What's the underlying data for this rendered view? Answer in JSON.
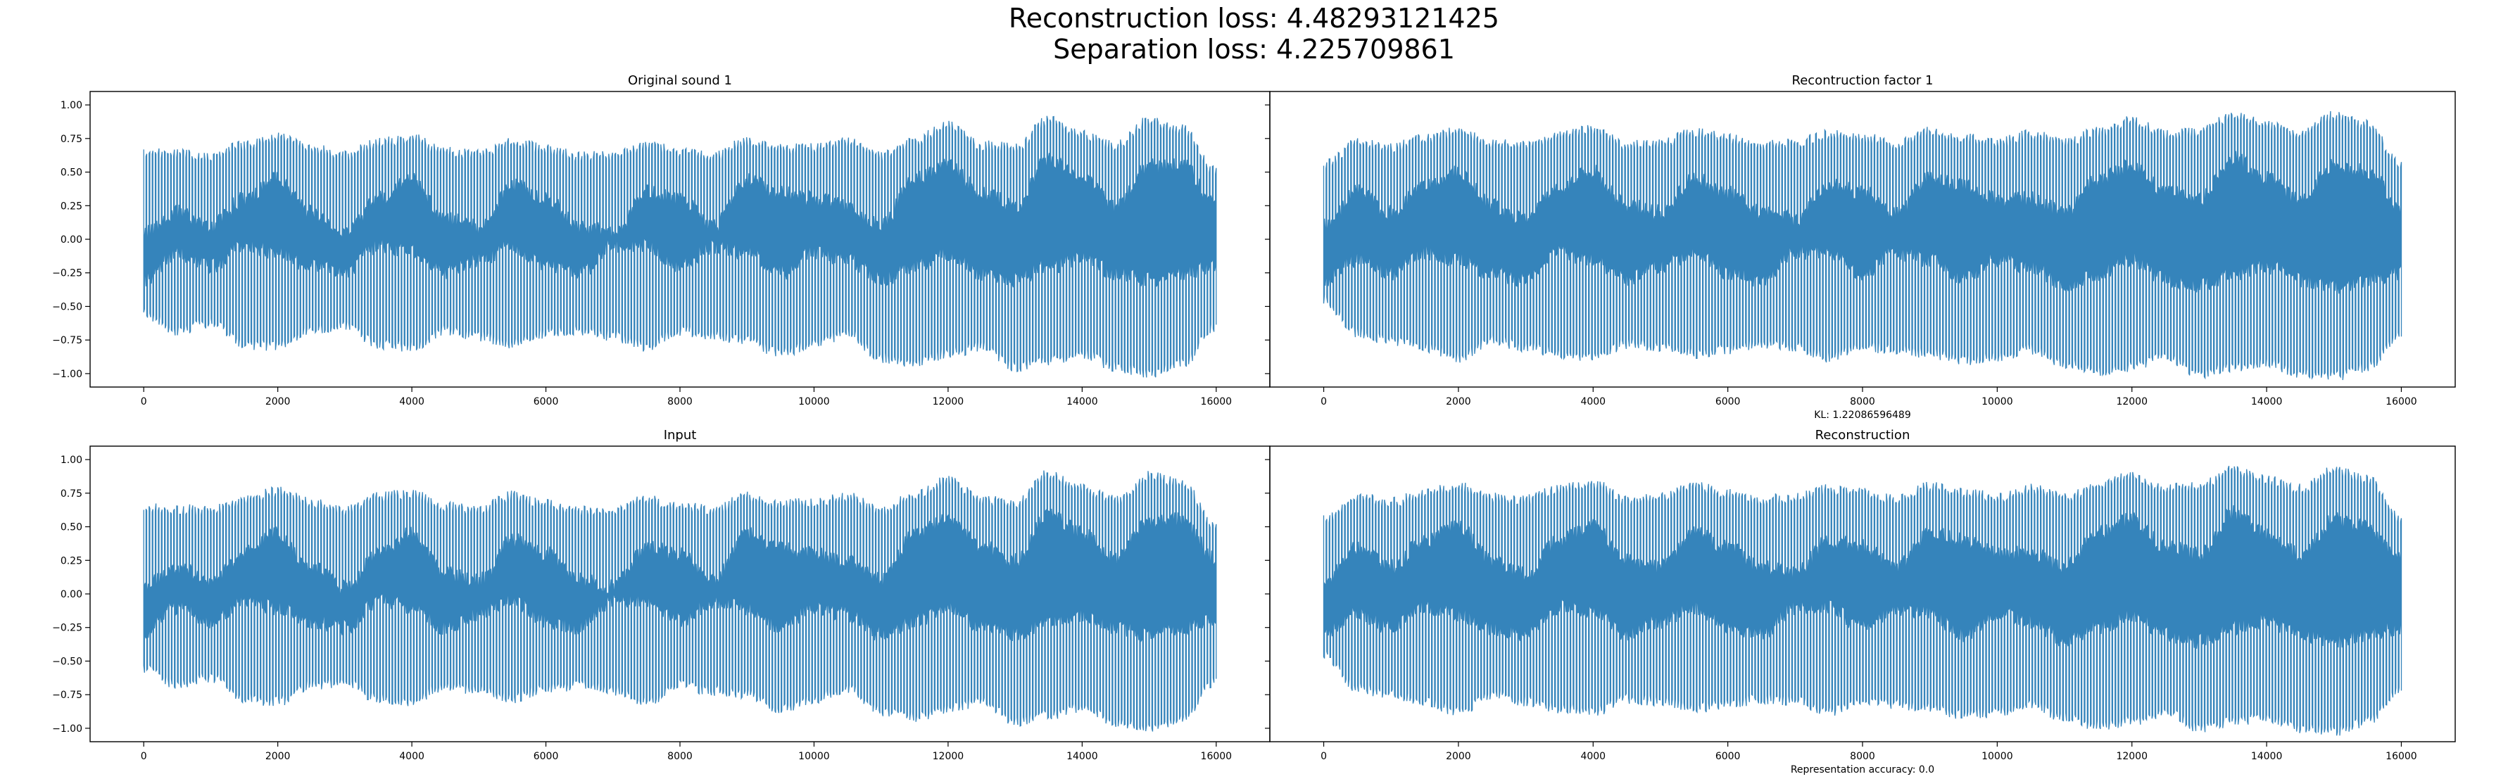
{
  "figure": {
    "suptitle_line1": "Reconstruction loss: 4.48293121425",
    "suptitle_line2": "Separation loss: 4.225709861",
    "line_color": "#1f77b4",
    "background": "#ffffff"
  },
  "chart_data": [
    {
      "type": "line",
      "title": "Original sound 1",
      "xlabel": "",
      "ylabel": "",
      "xlim": [
        -800,
        16800
      ],
      "ylim": [
        -1.1,
        1.1
      ],
      "xticks": [
        0,
        2000,
        4000,
        6000,
        8000,
        10000,
        12000,
        14000,
        16000
      ],
      "yticks": [
        -1.0,
        -0.75,
        -0.5,
        -0.25,
        0.0,
        0.25,
        0.5,
        0.75,
        1.0
      ],
      "ytick_labels": [
        "−1.00",
        "−0.75",
        "−0.50",
        "−0.25",
        "0.00",
        "0.25",
        "0.50",
        "0.75",
        "1.00"
      ],
      "grid": false,
      "series": [
        {
          "values": "waveform, 16000 samples",
          "x_range": [
            0,
            16000
          ],
          "y_range": [
            -1.0,
            0.89
          ]
        }
      ],
      "envelope_knots": {
        "x": [
          0,
          500,
          1000,
          1500,
          2000,
          2500,
          3000,
          3500,
          4000,
          4500,
          5000,
          5500,
          6000,
          6500,
          7000,
          7500,
          8000,
          8500,
          9000,
          9500,
          10000,
          10500,
          11000,
          11500,
          12000,
          12500,
          13000,
          13500,
          14000,
          14500,
          15000,
          15500,
          16000
        ],
        "upper": [
          0.65,
          0.63,
          0.62,
          0.7,
          0.76,
          0.68,
          0.62,
          0.72,
          0.75,
          0.65,
          0.63,
          0.73,
          0.67,
          0.62,
          0.62,
          0.7,
          0.65,
          0.62,
          0.73,
          0.67,
          0.68,
          0.72,
          0.62,
          0.73,
          0.85,
          0.7,
          0.68,
          0.89,
          0.78,
          0.7,
          0.88,
          0.82,
          0.5
        ],
        "lower": [
          -0.55,
          -0.68,
          -0.62,
          -0.78,
          -0.8,
          -0.68,
          -0.65,
          -0.78,
          -0.8,
          -0.68,
          -0.72,
          -0.78,
          -0.7,
          -0.68,
          -0.72,
          -0.8,
          -0.68,
          -0.72,
          -0.75,
          -0.85,
          -0.78,
          -0.7,
          -0.88,
          -0.92,
          -0.85,
          -0.8,
          -0.95,
          -0.9,
          -0.85,
          -0.95,
          -1.0,
          -0.92,
          -0.65
        ],
        "mid_upper": [
          0.05,
          0.2,
          0.1,
          0.3,
          0.45,
          0.2,
          0.05,
          0.3,
          0.45,
          0.15,
          0.1,
          0.4,
          0.3,
          0.1,
          0.05,
          0.35,
          0.3,
          0.1,
          0.45,
          0.35,
          0.3,
          0.25,
          0.1,
          0.45,
          0.55,
          0.35,
          0.25,
          0.6,
          0.45,
          0.25,
          0.55,
          0.55,
          0.25
        ],
        "mid_lower": [
          -0.3,
          -0.1,
          -0.2,
          -0.05,
          -0.1,
          -0.2,
          -0.25,
          -0.05,
          -0.1,
          -0.25,
          -0.15,
          -0.05,
          -0.2,
          -0.25,
          -0.05,
          -0.05,
          -0.2,
          -0.05,
          -0.1,
          -0.25,
          -0.1,
          -0.15,
          -0.3,
          -0.2,
          -0.1,
          -0.25,
          -0.3,
          -0.2,
          -0.15,
          -0.25,
          -0.3,
          -0.25,
          -0.2
        ]
      }
    },
    {
      "type": "line",
      "title": "Recontruction factor 1",
      "xlabel": "KL: 1.22086596489",
      "ylabel": "",
      "xlim": [
        -800,
        16800
      ],
      "ylim": [
        -1.1,
        1.1
      ],
      "xticks": [
        0,
        2000,
        4000,
        6000,
        8000,
        10000,
        12000,
        14000,
        16000
      ],
      "yticks": [
        -1.0,
        -0.75,
        -0.5,
        -0.25,
        0.0,
        0.25,
        0.5,
        0.75,
        1.0
      ],
      "grid": false,
      "series": [
        {
          "values": "waveform, 16000 samples",
          "x_range": [
            0,
            16000
          ],
          "y_range": [
            -1.02,
            0.93
          ]
        }
      ],
      "envelope_knots": {
        "x": [
          0,
          500,
          1000,
          1500,
          2000,
          2500,
          3000,
          3500,
          4000,
          4500,
          5000,
          5500,
          6000,
          6500,
          7000,
          7500,
          8000,
          8500,
          9000,
          9500,
          10000,
          10500,
          11000,
          11500,
          12000,
          12500,
          13000,
          13500,
          14000,
          14500,
          15000,
          15500,
          16000
        ],
        "upper": [
          0.55,
          0.72,
          0.68,
          0.75,
          0.8,
          0.72,
          0.7,
          0.78,
          0.82,
          0.7,
          0.72,
          0.8,
          0.75,
          0.7,
          0.72,
          0.78,
          0.76,
          0.7,
          0.8,
          0.75,
          0.72,
          0.78,
          0.72,
          0.8,
          0.88,
          0.78,
          0.8,
          0.92,
          0.85,
          0.78,
          0.92,
          0.85,
          0.55
        ],
        "lower": [
          -0.45,
          -0.7,
          -0.75,
          -0.8,
          -0.88,
          -0.75,
          -0.8,
          -0.85,
          -0.88,
          -0.78,
          -0.8,
          -0.85,
          -0.82,
          -0.78,
          -0.8,
          -0.88,
          -0.8,
          -0.82,
          -0.85,
          -0.9,
          -0.88,
          -0.82,
          -0.92,
          -0.98,
          -0.95,
          -0.88,
          -1.0,
          -0.95,
          -0.92,
          -1.0,
          -1.02,
          -0.95,
          -0.7
        ],
        "mid_upper": [
          0.1,
          0.35,
          0.2,
          0.4,
          0.5,
          0.25,
          0.15,
          0.4,
          0.5,
          0.25,
          0.2,
          0.45,
          0.35,
          0.2,
          0.15,
          0.4,
          0.35,
          0.2,
          0.45,
          0.4,
          0.3,
          0.3,
          0.2,
          0.45,
          0.55,
          0.35,
          0.3,
          0.6,
          0.45,
          0.3,
          0.55,
          0.5,
          0.25
        ],
        "mid_lower": [
          -0.3,
          -0.15,
          -0.25,
          -0.1,
          -0.15,
          -0.25,
          -0.3,
          -0.1,
          -0.15,
          -0.3,
          -0.2,
          -0.1,
          -0.25,
          -0.3,
          -0.1,
          -0.1,
          -0.25,
          -0.1,
          -0.15,
          -0.3,
          -0.15,
          -0.2,
          -0.35,
          -0.25,
          -0.15,
          -0.3,
          -0.35,
          -0.25,
          -0.2,
          -0.3,
          -0.35,
          -0.3,
          -0.25
        ]
      }
    },
    {
      "type": "line",
      "title": "Input",
      "xlabel": "",
      "ylabel": "",
      "xlim": [
        -800,
        16800
      ],
      "ylim": [
        -1.1,
        1.1
      ],
      "xticks": [
        0,
        2000,
        4000,
        6000,
        8000,
        10000,
        12000,
        14000,
        16000
      ],
      "yticks": [
        -1.0,
        -0.75,
        -0.5,
        -0.25,
        0.0,
        0.25,
        0.5,
        0.75,
        1.0
      ],
      "ytick_labels": [
        "−1.00",
        "−0.75",
        "−0.50",
        "−0.25",
        "0.00",
        "0.25",
        "0.50",
        "0.75",
        "1.00"
      ],
      "grid": false,
      "series": [
        {
          "values": "waveform, 16000 samples",
          "x_range": [
            0,
            16000
          ],
          "y_range": [
            -1.0,
            0.89
          ]
        }
      ],
      "envelope_knots": {
        "x": [
          0,
          500,
          1000,
          1500,
          2000,
          2500,
          3000,
          3500,
          4000,
          4500,
          5000,
          5500,
          6000,
          6500,
          7000,
          7500,
          8000,
          8500,
          9000,
          9500,
          10000,
          10500,
          11000,
          11500,
          12000,
          12500,
          13000,
          13500,
          14000,
          14500,
          15000,
          15500,
          16000
        ],
        "upper": [
          0.65,
          0.63,
          0.62,
          0.7,
          0.76,
          0.68,
          0.62,
          0.72,
          0.75,
          0.65,
          0.63,
          0.73,
          0.67,
          0.62,
          0.62,
          0.7,
          0.65,
          0.62,
          0.73,
          0.67,
          0.68,
          0.72,
          0.62,
          0.73,
          0.85,
          0.7,
          0.68,
          0.89,
          0.78,
          0.7,
          0.88,
          0.82,
          0.5
        ],
        "lower": [
          -0.55,
          -0.68,
          -0.62,
          -0.78,
          -0.8,
          -0.68,
          -0.65,
          -0.78,
          -0.8,
          -0.68,
          -0.72,
          -0.78,
          -0.7,
          -0.68,
          -0.72,
          -0.8,
          -0.68,
          -0.72,
          -0.75,
          -0.85,
          -0.78,
          -0.7,
          -0.88,
          -0.92,
          -0.85,
          -0.8,
          -0.95,
          -0.9,
          -0.85,
          -0.95,
          -1.0,
          -0.92,
          -0.65
        ],
        "mid_upper": [
          0.05,
          0.2,
          0.1,
          0.3,
          0.45,
          0.2,
          0.05,
          0.3,
          0.45,
          0.15,
          0.1,
          0.4,
          0.3,
          0.1,
          0.05,
          0.35,
          0.3,
          0.1,
          0.45,
          0.35,
          0.3,
          0.25,
          0.1,
          0.45,
          0.55,
          0.35,
          0.25,
          0.6,
          0.45,
          0.25,
          0.55,
          0.55,
          0.25
        ],
        "mid_lower": [
          -0.3,
          -0.1,
          -0.2,
          -0.05,
          -0.1,
          -0.2,
          -0.25,
          -0.05,
          -0.1,
          -0.25,
          -0.15,
          -0.05,
          -0.2,
          -0.25,
          -0.05,
          -0.05,
          -0.2,
          -0.05,
          -0.1,
          -0.25,
          -0.1,
          -0.15,
          -0.3,
          -0.2,
          -0.1,
          -0.25,
          -0.3,
          -0.2,
          -0.15,
          -0.25,
          -0.3,
          -0.25,
          -0.2
        ]
      }
    },
    {
      "type": "line",
      "title": "Reconstruction",
      "xlabel": "Representation accuracy: 0.0",
      "ylabel": "",
      "xlim": [
        -800,
        16800
      ],
      "ylim": [
        -1.1,
        1.1
      ],
      "xticks": [
        0,
        2000,
        4000,
        6000,
        8000,
        10000,
        12000,
        14000,
        16000
      ],
      "yticks": [
        -1.0,
        -0.75,
        -0.5,
        -0.25,
        0.0,
        0.25,
        0.5,
        0.75,
        1.0
      ],
      "grid": false,
      "series": [
        {
          "values": "waveform, 16000 samples",
          "x_range": [
            0,
            16000
          ],
          "y_range": [
            -1.02,
            0.93
          ]
        }
      ],
      "envelope_knots": {
        "x": [
          0,
          500,
          1000,
          1500,
          2000,
          2500,
          3000,
          3500,
          4000,
          4500,
          5000,
          5500,
          6000,
          6500,
          7000,
          7500,
          8000,
          8500,
          9000,
          9500,
          10000,
          10500,
          11000,
          11500,
          12000,
          12500,
          13000,
          13500,
          14000,
          14500,
          15000,
          15500,
          16000
        ],
        "upper": [
          0.55,
          0.72,
          0.68,
          0.75,
          0.8,
          0.72,
          0.7,
          0.78,
          0.82,
          0.7,
          0.72,
          0.8,
          0.75,
          0.7,
          0.72,
          0.78,
          0.76,
          0.7,
          0.8,
          0.75,
          0.72,
          0.78,
          0.72,
          0.8,
          0.88,
          0.78,
          0.8,
          0.92,
          0.85,
          0.78,
          0.92,
          0.85,
          0.55
        ],
        "lower": [
          -0.45,
          -0.7,
          -0.75,
          -0.8,
          -0.88,
          -0.75,
          -0.8,
          -0.85,
          -0.88,
          -0.78,
          -0.8,
          -0.85,
          -0.82,
          -0.78,
          -0.8,
          -0.88,
          -0.8,
          -0.82,
          -0.85,
          -0.9,
          -0.88,
          -0.82,
          -0.92,
          -0.98,
          -0.95,
          -0.88,
          -1.0,
          -0.95,
          -0.92,
          -1.0,
          -1.02,
          -0.95,
          -0.7
        ],
        "mid_upper": [
          0.1,
          0.35,
          0.2,
          0.4,
          0.5,
          0.25,
          0.15,
          0.4,
          0.5,
          0.25,
          0.2,
          0.45,
          0.35,
          0.2,
          0.15,
          0.4,
          0.35,
          0.2,
          0.45,
          0.4,
          0.3,
          0.3,
          0.2,
          0.45,
          0.55,
          0.35,
          0.3,
          0.6,
          0.45,
          0.3,
          0.55,
          0.5,
          0.25
        ],
        "mid_lower": [
          -0.3,
          -0.15,
          -0.25,
          -0.1,
          -0.15,
          -0.25,
          -0.3,
          -0.1,
          -0.15,
          -0.3,
          -0.2,
          -0.1,
          -0.25,
          -0.3,
          -0.1,
          -0.1,
          -0.25,
          -0.1,
          -0.15,
          -0.3,
          -0.15,
          -0.2,
          -0.35,
          -0.25,
          -0.15,
          -0.3,
          -0.35,
          -0.25,
          -0.2,
          -0.3,
          -0.35,
          -0.3,
          -0.25
        ]
      }
    }
  ]
}
